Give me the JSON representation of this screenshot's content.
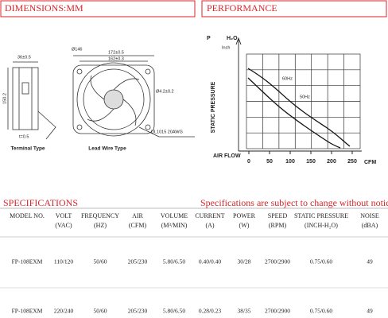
{
  "dimensions": {
    "title": "DIMENSIONS:MM",
    "labels": [
      "36±0.5",
      "Ø146",
      "172±0.5",
      "162±0.3",
      "Ø4.2±0.2",
      "UL1015 20AWG",
      "t=0.5",
      "150.2"
    ],
    "captions": [
      "Terminal Type",
      "Lead Wire Type"
    ]
  },
  "performance": {
    "title": "PERFORMANCE",
    "y_symbol": "P",
    "y_unit_top": "H₂O",
    "y_unit": "Inch",
    "y_label": "STATIC PRESSURE",
    "x_label": "AIR FLOW",
    "x_unit": "CFM",
    "xticks": [
      0,
      50,
      100,
      150,
      200,
      250
    ],
    "curve_labels": [
      "60Hz",
      "50Hz"
    ]
  },
  "specifications": {
    "title": "SPECIFICATIONS",
    "notice": "Specifications are subject to change without notice",
    "header": [
      [
        "MODEL NO.",
        ""
      ],
      [
        "VOLT",
        "(VAC)"
      ],
      [
        "FREQUENCY",
        "(HZ)"
      ],
      [
        "AIR",
        "(CFM)"
      ],
      [
        "VOLUME",
        "(M³/MIN)"
      ],
      [
        "CURRENT",
        "(A)"
      ],
      [
        "POWER",
        "(W)"
      ],
      [
        "SPEED",
        "(RPM)"
      ],
      [
        "STATIC PRESSURE",
        "(INCH-H₂O)"
      ],
      [
        "NOISE",
        "(dBA)"
      ]
    ],
    "rows": [
      [
        "FP-108EXM",
        "110/120",
        "50/60",
        "205/230",
        "5.80/6.50",
        "0.40/0.40",
        "30/28",
        "2700/2900",
        "0.75/0.60",
        "49"
      ],
      [
        "FP-108EXM",
        "220/240",
        "50/60",
        "205/230",
        "5.80/6.50",
        "0.28/0.23",
        "38/35",
        "2700/2900",
        "0.75/0.60",
        "49"
      ]
    ]
  }
}
